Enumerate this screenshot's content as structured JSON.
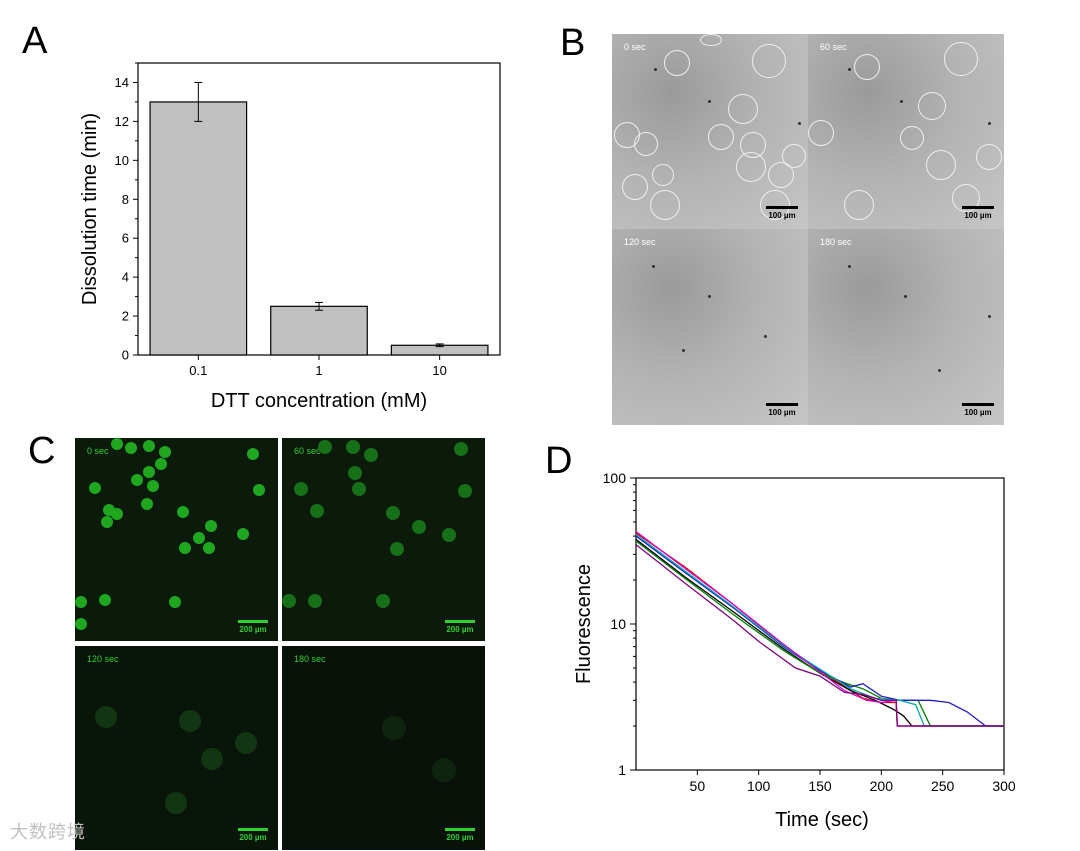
{
  "panels": {
    "a": "A",
    "b": "B",
    "c": "C",
    "d": "D"
  },
  "chart_data": [
    {
      "type": "bar",
      "panel": "A",
      "categories": [
        "0.1",
        "1",
        "10"
      ],
      "values": [
        13.0,
        2.5,
        0.5
      ],
      "errors": [
        1.0,
        0.2,
        0.07
      ],
      "xlabel": "DTT concentration (mM)",
      "ylabel": "Dissolution time (min)",
      "ylim": [
        0,
        15
      ],
      "yticks": [
        "0",
        "2",
        "4",
        "6",
        "8",
        "10",
        "12",
        "14"
      ],
      "bar_color": "#c0c0c0",
      "grid": false
    },
    {
      "type": "line",
      "panel": "D",
      "xlabel": "Time (sec)",
      "ylabel": "Fluorescence",
      "xlim": [
        0,
        300
      ],
      "ylim": [
        1,
        100
      ],
      "yscale": "log",
      "xticks": [
        "50",
        "100",
        "150",
        "200",
        "250",
        "300"
      ],
      "yticks": [
        "1",
        "10",
        "100"
      ],
      "grid": false,
      "series": [
        {
          "color": "#e00000",
          "x": [
            0,
            40,
            80,
            120,
            150,
            185,
            200,
            212,
            213,
            300
          ],
          "y": [
            42,
            24.5,
            13.5,
            7.2,
            4.8,
            3.1,
            2.9,
            2.9,
            2,
            2
          ]
        },
        {
          "color": "#000000",
          "x": [
            0,
            40,
            80,
            120,
            150,
            175,
            195,
            210,
            218,
            225,
            300
          ],
          "y": [
            38,
            21,
            12,
            6.8,
            4.6,
            3.5,
            3.0,
            2.6,
            2.35,
            2,
            2
          ]
        },
        {
          "color": "#008000",
          "x": [
            0,
            40,
            80,
            120,
            150,
            172,
            185,
            200,
            215,
            230,
            240,
            300
          ],
          "y": [
            37,
            20.5,
            11.5,
            6.6,
            4.6,
            3.9,
            3.6,
            3.1,
            3.0,
            3.0,
            2,
            2
          ]
        },
        {
          "color": "#1e1ec8",
          "x": [
            0,
            40,
            80,
            120,
            150,
            175,
            185,
            200,
            215,
            240,
            255,
            270,
            285,
            300
          ],
          "y": [
            40,
            22.5,
            12.8,
            7.0,
            4.8,
            3.7,
            3.9,
            3.2,
            3.0,
            3.0,
            2.9,
            2.5,
            2,
            2
          ]
        },
        {
          "color": "#00aaaa",
          "x": [
            0,
            40,
            80,
            120,
            150,
            175,
            195,
            215,
            228,
            235,
            300
          ],
          "y": [
            41,
            23,
            13,
            7.1,
            4.9,
            3.6,
            3.1,
            3.0,
            2.8,
            2,
            2
          ]
        },
        {
          "color": "#d000d0",
          "x": [
            0,
            40,
            80,
            120,
            150,
            170,
            188,
            200,
            212,
            213,
            300
          ],
          "y": [
            43,
            24,
            13.5,
            7.3,
            4.7,
            3.5,
            3.0,
            2.9,
            3.0,
            2,
            2
          ]
        },
        {
          "color": "#800080",
          "x": [
            0,
            40,
            80,
            100,
            130,
            150,
            170,
            185,
            200,
            212,
            213,
            300
          ],
          "y": [
            35,
            19,
            10.5,
            7.6,
            5.0,
            4.4,
            3.4,
            3.3,
            3.0,
            3.0,
            2,
            2
          ]
        }
      ]
    }
  ],
  "micrographs_b": {
    "scale_label": "100 µm",
    "frames": [
      {
        "time": "0 sec"
      },
      {
        "time": "60 sec"
      },
      {
        "time": "120 sec"
      },
      {
        "time": "180 sec"
      }
    ]
  },
  "micrographs_c": {
    "scale_label": "200 µm",
    "label_color": "#2fd02f",
    "frames": [
      {
        "time": "0 sec"
      },
      {
        "time": "60 sec"
      },
      {
        "time": "120 sec"
      },
      {
        "time": "180 sec"
      }
    ]
  },
  "watermark": "大数跨境"
}
